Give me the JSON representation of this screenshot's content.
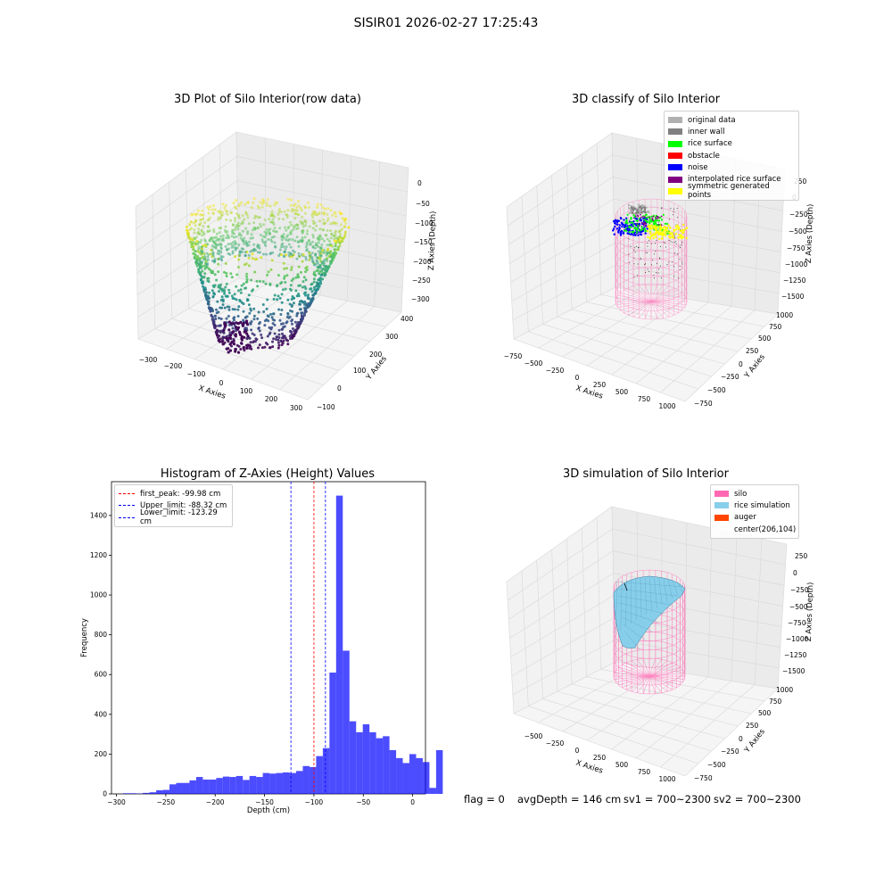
{
  "figure": {
    "suptitle": "SISIR01 2026-02-27 17:25:43",
    "status": {
      "flag": "flag = 0",
      "avg_depth": "avgDepth = 146 cm",
      "sv1": "sv1 = 700~2300",
      "sv2": "sv2 = 700~2300"
    }
  },
  "chart_data": [
    {
      "type": "scatter3d",
      "title": "3D Plot of Silo Interior(row data)",
      "xlabel": "X Axies",
      "ylabel": "Y Axies",
      "zlabel": "Z Axies (Depth)",
      "x_ticks": [
        "−300",
        "−200",
        "−100",
        "0",
        "100",
        "200",
        "300"
      ],
      "y_ticks": [
        "−100",
        "0",
        "100",
        "200",
        "300",
        "400"
      ],
      "z_ticks": [
        "0",
        "−50",
        "−100",
        "−150",
        "−200",
        "−250",
        "−300"
      ],
      "xlim": [
        -330,
        330
      ],
      "ylim": [
        -100,
        400
      ],
      "zlim": [
        -330,
        0
      ],
      "colormap": "viridis"
    },
    {
      "type": "scatter3d",
      "title": "3D classify of Silo Interior",
      "xlabel": "X Axies",
      "ylabel": "Y Axies",
      "zlabel": "Z Axies (Depth)",
      "x_ticks": [
        "−750",
        "−500",
        "−250",
        "0",
        "250",
        "500",
        "750",
        "1000"
      ],
      "y_ticks": [
        "−750",
        "−500",
        "−250",
        "0",
        "250",
        "500",
        "750",
        "1000"
      ],
      "z_ticks": [
        "250",
        "0",
        "−250",
        "−500",
        "−750",
        "−1000",
        "−1250",
        "−1500"
      ],
      "legend": [
        {
          "label": "original data",
          "color": "#b0b0b0"
        },
        {
          "label": "inner wall",
          "color": "#808080"
        },
        {
          "label": "rice surface",
          "color": "#00ff00"
        },
        {
          "label": "obstacle",
          "color": "#ff0000"
        },
        {
          "label": "noise",
          "color": "#0000ff"
        },
        {
          "label": "interpolated rice surface",
          "color": "#800080"
        },
        {
          "label": "symmetric generated points",
          "color": "#ffff00"
        }
      ],
      "legend_position": "top-right"
    },
    {
      "type": "bar",
      "title": "Histogram of Z-Axies (Height) Values",
      "xlabel": "Depth (cm)",
      "ylabel": "Frequency",
      "x_ticks": [
        -300,
        -250,
        -200,
        -150,
        -100,
        -50,
        0
      ],
      "y_ticks": [
        0,
        200,
        400,
        600,
        800,
        1000,
        1200,
        1400
      ],
      "xlim": [
        -305,
        13
      ],
      "ylim": [
        0,
        1570
      ],
      "bin_start": -293.5,
      "bin_width": 6.75,
      "counts": [
        3,
        3,
        2,
        5,
        8,
        18,
        20,
        48,
        55,
        55,
        68,
        85,
        72,
        72,
        80,
        87,
        85,
        90,
        70,
        90,
        85,
        105,
        102,
        105,
        108,
        105,
        115,
        140,
        135,
        190,
        230,
        610,
        1500,
        720,
        365,
        310,
        350,
        310,
        280,
        290,
        220,
        180,
        155,
        200,
        180,
        160,
        30,
        220
      ],
      "bar_color": "#0000ff",
      "bar_alpha": 0.7,
      "lines": [
        {
          "label": "first_peak: -99.98 cm",
          "value": -99.98,
          "color": "#ff0000"
        },
        {
          "label": "Upper_limit: -88.32 cm",
          "value": -88.32,
          "color": "#0000ff"
        },
        {
          "label": "Lower_limit: -123.29 cm",
          "value": -123.29,
          "color": "#0000ff"
        }
      ],
      "legend_position": "top-left"
    },
    {
      "type": "surface3d",
      "title": "3D simulation of Silo Interior",
      "xlabel": "X Axies",
      "ylabel": "Y Axies",
      "zlabel": "Z Axies (Depth)",
      "x_ticks": [
        "−500",
        "−250",
        "0",
        "250",
        "500",
        "750",
        "1000"
      ],
      "y_ticks": [
        "−750",
        "−500",
        "−250",
        "0",
        "250",
        "500",
        "750",
        "1000"
      ],
      "z_ticks": [
        "250",
        "0",
        "−250",
        "−500",
        "−750",
        "−1000",
        "−1250",
        "−1500"
      ],
      "legend": [
        {
          "label": "silo",
          "color": "#ff69b4"
        },
        {
          "label": "rice simulation",
          "color": "#87ceeb"
        },
        {
          "label": "auger",
          "color": "#ff4500"
        },
        {
          "label": "center(206,104)",
          "color": ""
        }
      ],
      "legend_position": "top-right"
    }
  ]
}
